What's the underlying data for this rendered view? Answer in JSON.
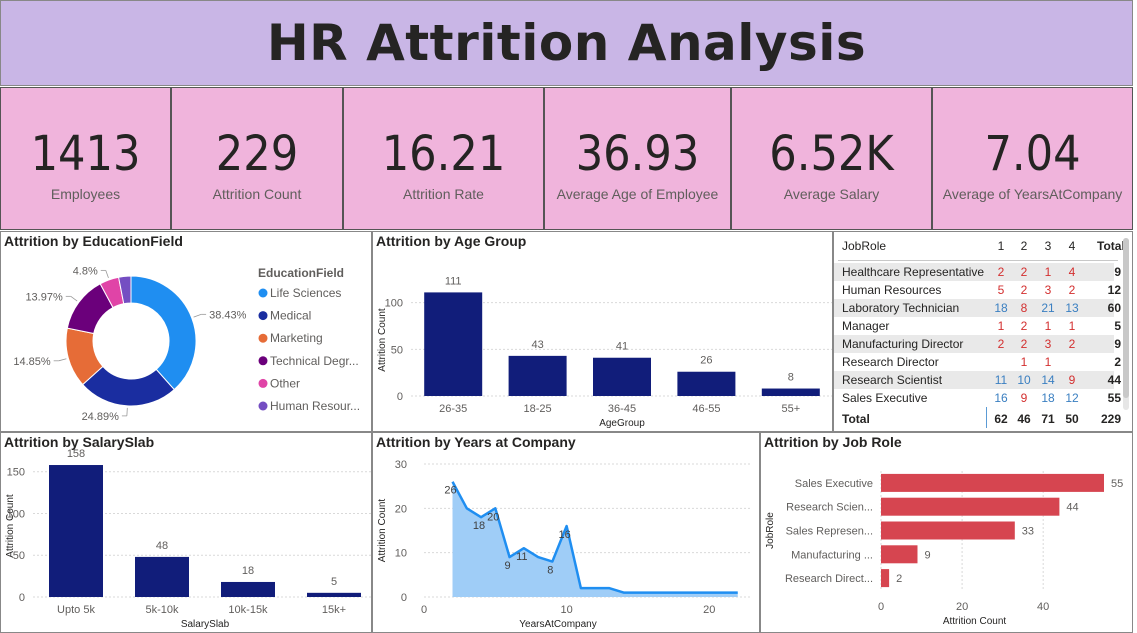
{
  "title": "HR Attrition Analysis",
  "colors": {
    "title_bg": "#c9b6e6",
    "kpi_bg": "#f0b4dc",
    "bar_navy": "#111d7a",
    "bar_red": "#d64550",
    "area_blue": "#1f8ef1",
    "area_fill": "#9fcdf7",
    "matrix_red": "#d32f2f",
    "matrix_blue": "#3a7fc1"
  },
  "kpis": [
    {
      "value": "1413",
      "label": "Employees"
    },
    {
      "value": "229",
      "label": "Attrition Count"
    },
    {
      "value": "16.21",
      "label": "Attrition Rate"
    },
    {
      "value": "36.93",
      "label": "Average Age of Employee"
    },
    {
      "value": "6.52K",
      "label": "Average Salary"
    },
    {
      "value": "7.04",
      "label": "Average of YearsAtCompany"
    }
  ],
  "panels": {
    "education": "Attrition by EducationField",
    "age": "Attrition by Age Group",
    "salary": "Attrition by SalarySlab",
    "years": "Attrition by Years at Company",
    "jobrole": "Attrition by Job Role"
  },
  "matrix": {
    "headers": [
      "JobRole",
      "1",
      "2",
      "3",
      "4",
      "Total"
    ],
    "rows": [
      {
        "role": "Healthcare Representative",
        "v": [
          "2",
          "2",
          "1",
          "4"
        ],
        "total": "9"
      },
      {
        "role": "Human Resources",
        "v": [
          "5",
          "2",
          "3",
          "2"
        ],
        "total": "12"
      },
      {
        "role": "Laboratory Technician",
        "v": [
          "18",
          "8",
          "21",
          "13"
        ],
        "total": "60"
      },
      {
        "role": "Manager",
        "v": [
          "1",
          "2",
          "1",
          "1"
        ],
        "total": "5"
      },
      {
        "role": "Manufacturing Director",
        "v": [
          "2",
          "2",
          "3",
          "2"
        ],
        "total": "9"
      },
      {
        "role": "Research Director",
        "v": [
          "",
          "1",
          "1",
          ""
        ],
        "total": "2"
      },
      {
        "role": "Research Scientist",
        "v": [
          "11",
          "10",
          "14",
          "9"
        ],
        "total": "44"
      },
      {
        "role": "Sales Executive",
        "v": [
          "16",
          "9",
          "18",
          "12"
        ],
        "total": "55"
      }
    ],
    "total_row": {
      "role": "Total",
      "v": [
        "62",
        "46",
        "71",
        "50"
      ],
      "total": "229"
    }
  },
  "chart_data": [
    {
      "type": "pie",
      "title": "Attrition by EducationField",
      "legend_title": "EducationField",
      "legend_position": "right",
      "categories": [
        "Life Sciences",
        "Medical",
        "Marketing",
        "Technical Degr...",
        "Other",
        "Human Resour..."
      ],
      "values": [
        38.43,
        24.89,
        14.85,
        13.97,
        4.8,
        3.06
      ],
      "value_labels": [
        "38.43%",
        "24.89%",
        "14.85%",
        "13.97%",
        "4.8%",
        ""
      ],
      "colors": [
        "#1f8ef1",
        "#1a2da0",
        "#e66c37",
        "#6b007b",
        "#e044a7",
        "#744ec2"
      ]
    },
    {
      "type": "bar",
      "title": "Attrition by Age Group",
      "xlabel": "AgeGroup",
      "ylabel": "Attrition Count",
      "categories": [
        "26-35",
        "18-25",
        "36-45",
        "46-55",
        "55+"
      ],
      "values": [
        111,
        43,
        41,
        26,
        8
      ],
      "ylim": [
        0,
        120
      ],
      "yticks": [
        0,
        50,
        100
      ]
    },
    {
      "type": "bar",
      "title": "Attrition by SalarySlab",
      "xlabel": "SalarySlab",
      "ylabel": "Attrition Count",
      "categories": [
        "Upto 5k",
        "5k-10k",
        "10k-15k",
        "15k+"
      ],
      "values": [
        158,
        48,
        18,
        5
      ],
      "ylim": [
        0,
        170
      ],
      "yticks": [
        0,
        50,
        100,
        150
      ]
    },
    {
      "type": "area",
      "title": "Attrition by Years at Company",
      "xlabel": "YearsAtCompany",
      "ylabel": "Attrition Count",
      "x": [
        2,
        3,
        4,
        5,
        6,
        7,
        8,
        9,
        10,
        11,
        12,
        13,
        14,
        15,
        16,
        17,
        18,
        19,
        20,
        21,
        22
      ],
      "y": [
        26,
        20,
        18,
        20,
        9,
        11,
        9,
        8,
        16,
        2,
        2,
        2,
        1,
        1,
        1,
        1,
        1,
        1,
        1,
        1,
        1
      ],
      "data_labels": [
        {
          "x": 2,
          "y": 26,
          "text": "26"
        },
        {
          "x": 4,
          "y": 18,
          "text": "18"
        },
        {
          "x": 5,
          "y": 20,
          "text": "20"
        },
        {
          "x": 6,
          "y": 9,
          "text": "9"
        },
        {
          "x": 7,
          "y": 11,
          "text": "11"
        },
        {
          "x": 9,
          "y": 8,
          "text": "8"
        },
        {
          "x": 10,
          "y": 16,
          "text": "16"
        }
      ],
      "xlim": [
        0,
        23
      ],
      "ylim": [
        0,
        30
      ],
      "xticks": [
        0,
        10,
        20
      ],
      "yticks": [
        0,
        10,
        20,
        30
      ]
    },
    {
      "type": "bar",
      "orientation": "horizontal",
      "title": "Attrition by Job Role",
      "xlabel": "Attrition Count",
      "ylabel": "JobRole",
      "categories": [
        "Sales Executive",
        "Research Scien...",
        "Sales Represen...",
        "Manufacturing ...",
        "Research Direct..."
      ],
      "values": [
        55,
        44,
        33,
        9,
        2
      ],
      "xlim": [
        0,
        55
      ],
      "xticks": [
        0,
        20,
        40
      ]
    }
  ]
}
